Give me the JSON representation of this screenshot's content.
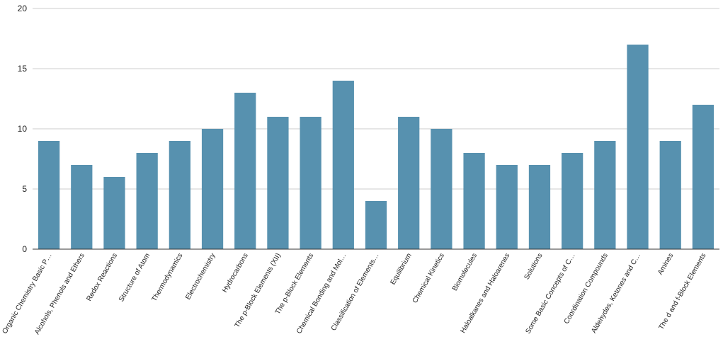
{
  "chart_data": {
    "type": "bar",
    "title": "",
    "xlabel": "",
    "ylabel": "",
    "ylim": [
      0,
      20
    ],
    "yticks": [
      "0",
      "5",
      "10",
      "15",
      "20"
    ],
    "grid": true,
    "bar_color": "#5791AF",
    "categories": [
      "Organic Chemistry Basic P…",
      "Alcohols, Phenols and Ethers",
      "Redox Reactions",
      "Structure of Atom",
      "Thermodynamics",
      "Electrochemistry",
      "Hydrocarbons",
      "The p-Block Elements (XII)",
      "The p-Block Elements",
      "Chemical Bonding and Mol…",
      "Classification of Elements…",
      "Equilibrium",
      "Chemical Kinetics",
      "Biomolecules",
      "Haloalkanes and Haloarenes",
      "Solutions",
      "Some Basic Concepts of C…",
      "Coordination Compounds",
      "Aldehydes, Ketones and C…",
      "Amines",
      "The d and f-Block Elements"
    ],
    "values": [
      9,
      7,
      6,
      8,
      9,
      10,
      13,
      11,
      11,
      14,
      4,
      11,
      10,
      8,
      7,
      7,
      8,
      9,
      17,
      9,
      12
    ]
  }
}
